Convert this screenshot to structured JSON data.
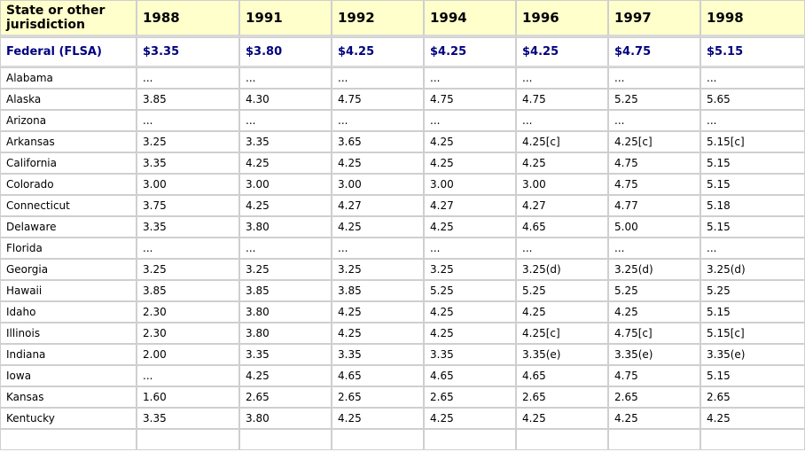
{
  "header": {
    "first": "State or other jurisdiction",
    "years": [
      "1988",
      "1991",
      "1992",
      "1994",
      "1996",
      "1997",
      "1998"
    ]
  },
  "federal": {
    "label": "Federal (FLSA)",
    "values": [
      "$3.35",
      "$3.80",
      "$4.25",
      "$4.25",
      "$4.25",
      "$4.75",
      "$5.15"
    ]
  },
  "rows": [
    {
      "state": "Alabama",
      "values": [
        "...",
        "...",
        "...",
        "...",
        "...",
        "...",
        "..."
      ]
    },
    {
      "state": "Alaska",
      "values": [
        "3.85",
        "4.30",
        "4.75",
        "4.75",
        "4.75",
        "5.25",
        "5.65"
      ]
    },
    {
      "state": "Arizona",
      "values": [
        "...",
        "...",
        "...",
        "...",
        "...",
        "...",
        "..."
      ]
    },
    {
      "state": "Arkansas",
      "values": [
        "3.25",
        "3.35",
        "3.65",
        "4.25",
        "4.25[c]",
        "4.25[c]",
        "5.15[c]"
      ]
    },
    {
      "state": "California",
      "values": [
        "3.35",
        "4.25",
        "4.25",
        "4.25",
        "4.25",
        "4.75",
        "5.15"
      ]
    },
    {
      "state": "Colorado",
      "values": [
        "3.00",
        "3.00",
        "3.00",
        "3.00",
        "3.00",
        "4.75",
        "5.15"
      ]
    },
    {
      "state": "Connecticut",
      "values": [
        "3.75",
        "4.25",
        "4.27",
        "4.27",
        "4.27",
        "4.77",
        "5.18"
      ]
    },
    {
      "state": "Delaware",
      "values": [
        "3.35",
        "3.80",
        "4.25",
        "4.25",
        "4.65",
        "5.00",
        "5.15"
      ]
    },
    {
      "state": "Florida",
      "values": [
        "...",
        "...",
        "...",
        "...",
        "...",
        "...",
        "..."
      ]
    },
    {
      "state": "Georgia",
      "values": [
        "3.25",
        "3.25",
        "3.25",
        "3.25",
        "3.25(d)",
        "3.25(d)",
        "3.25(d)"
      ]
    },
    {
      "state": "Hawaii",
      "values": [
        "3.85",
        "3.85",
        "3.85",
        "5.25",
        "5.25",
        "5.25",
        "5.25"
      ]
    },
    {
      "state": "Idaho",
      "values": [
        "2.30",
        "3.80",
        "4.25",
        "4.25",
        "4.25",
        "4.25",
        "5.15"
      ]
    },
    {
      "state": "Illinois",
      "values": [
        "2.30",
        "3.80",
        "4.25",
        "4.25",
        "4.25[c]",
        "4.75[c]",
        "5.15[c]"
      ]
    },
    {
      "state": "Indiana",
      "values": [
        "2.00",
        "3.35",
        "3.35",
        "3.35",
        "3.35(e)",
        "3.35(e)",
        "3.35(e)"
      ]
    },
    {
      "state": "Iowa",
      "values": [
        "...",
        "4.25",
        "4.65",
        "4.65",
        "4.65",
        "4.75",
        "5.15"
      ]
    },
    {
      "state": "Kansas",
      "values": [
        "1.60",
        "2.65",
        "2.65",
        "2.65",
        "2.65",
        "2.65",
        "2.65"
      ]
    },
    {
      "state": "Kentucky",
      "values": [
        "3.35",
        "3.80",
        "4.25",
        "4.25",
        "4.25",
        "4.25",
        "4.25"
      ]
    },
    {
      "state": "",
      "values": [
        "",
        "",
        "",
        "",
        "",
        "",
        ""
      ]
    }
  ]
}
